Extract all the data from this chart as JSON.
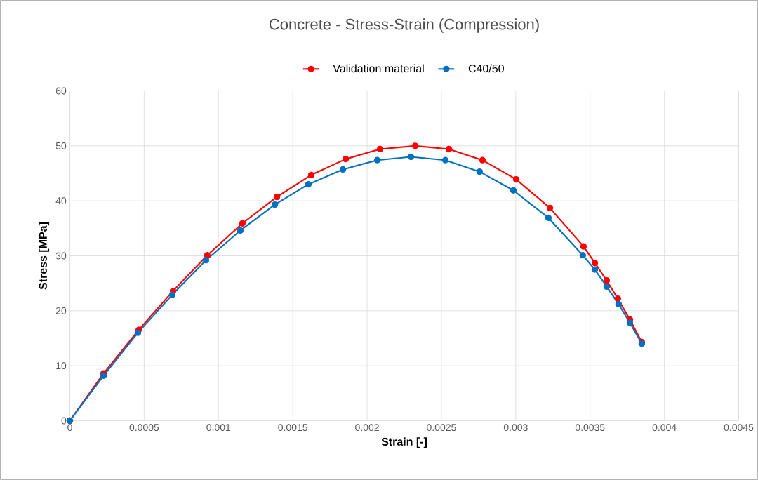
{
  "chart_data": {
    "type": "line",
    "title": "Concrete - Stress-Strain (Compression)",
    "xlabel": "Strain [-]",
    "ylabel": "Stress [MPa]",
    "xlim": [
      0,
      0.0045
    ],
    "xticks": [
      0,
      0.0005,
      0.001,
      0.0015,
      0.002,
      0.0025,
      0.003,
      0.0035,
      0.004,
      0.0045
    ],
    "ylim": [
      0,
      60
    ],
    "yticks": [
      0,
      10,
      20,
      30,
      40,
      50,
      60
    ],
    "grid": true,
    "legend": "top",
    "marker": "circle",
    "line_style": "solid",
    "series": [
      {
        "name": "Validation material",
        "color": "#ff0000",
        "x": [
          0,
          0.000227,
          0.000463,
          0.000694,
          0.000925,
          0.001161,
          0.001393,
          0.001624,
          0.001856,
          0.002087,
          0.002323,
          0.00255,
          0.002776,
          0.003003,
          0.00323,
          0.003456,
          0.003532,
          0.003612,
          0.003687,
          0.003768,
          0.003848
        ],
        "values": [
          0,
          8.6,
          16.5,
          23.6,
          30.1,
          35.9,
          40.7,
          44.7,
          47.6,
          49.4,
          50.0,
          49.4,
          47.4,
          43.9,
          38.7,
          31.7,
          28.7,
          25.5,
          22.2,
          18.4,
          14.3
        ]
      },
      {
        "name": "C40/50",
        "color": "#0070c0",
        "x": [
          0,
          0.000227,
          0.000458,
          0.000689,
          0.000916,
          0.001147,
          0.001379,
          0.001605,
          0.001837,
          0.002068,
          0.002295,
          0.002526,
          0.002757,
          0.002984,
          0.00322,
          0.003451,
          0.003532,
          0.003612,
          0.003692,
          0.003768,
          0.003848
        ],
        "values": [
          0,
          8.2,
          16.0,
          22.9,
          29.2,
          34.6,
          39.3,
          43.0,
          45.7,
          47.4,
          48.0,
          47.4,
          45.3,
          41.9,
          36.9,
          30.1,
          27.5,
          24.4,
          21.2,
          17.8,
          14.0
        ]
      }
    ]
  }
}
